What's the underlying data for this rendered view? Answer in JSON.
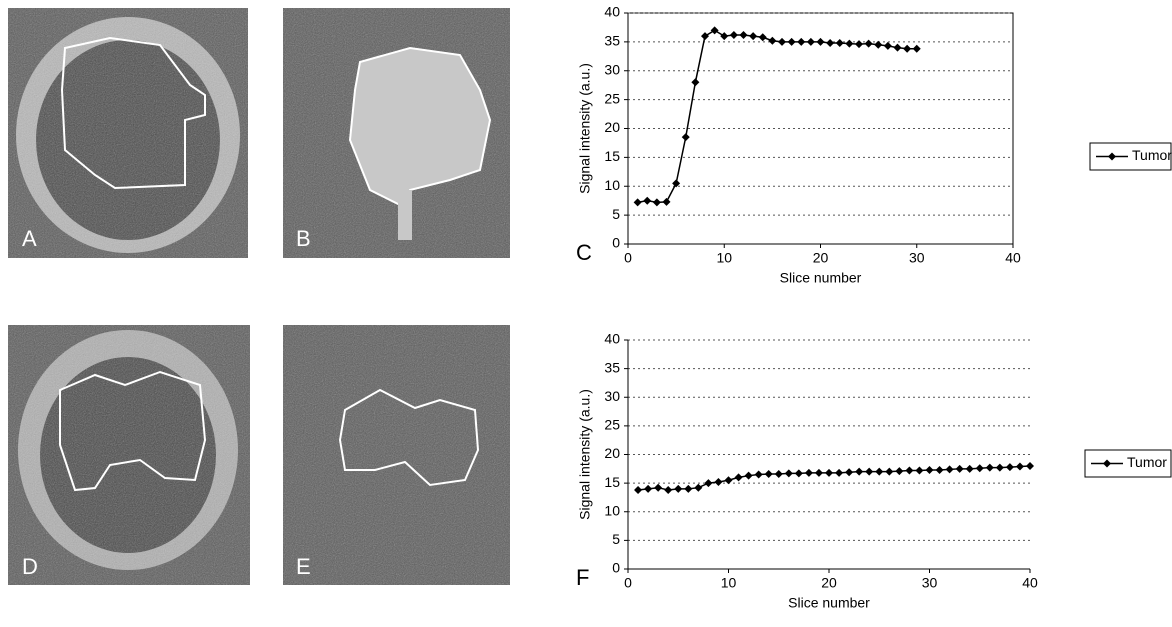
{
  "image_panels": [
    "A",
    "B",
    "D",
    "E"
  ],
  "chart_data": [
    {
      "type": "line",
      "panel_label": "C",
      "ylabel": "Signal intensity (a.u.)",
      "xlabel": "Slice number",
      "x": [
        1,
        2,
        3,
        4,
        5,
        6,
        7,
        8,
        9,
        10,
        11,
        12,
        13,
        14,
        15,
        16,
        17,
        18,
        19,
        20,
        21,
        22,
        23,
        24,
        25,
        26,
        27,
        28,
        29,
        30
      ],
      "series": [
        {
          "name": "Tumor",
          "color": "#000000",
          "values": [
            7.2,
            7.5,
            7.2,
            7.3,
            10.5,
            18.5,
            28,
            36,
            37,
            36,
            36.2,
            36.2,
            36,
            35.8,
            35.2,
            35,
            35,
            35,
            35,
            35,
            34.8,
            34.8,
            34.7,
            34.6,
            34.7,
            34.5,
            34.3,
            34,
            33.8,
            33.8
          ]
        }
      ],
      "xlim": [
        0,
        40
      ],
      "xticks": [
        0,
        10,
        20,
        30,
        40
      ],
      "ylim": [
        0,
        40
      ],
      "yticks": [
        0,
        5,
        10,
        15,
        20,
        25,
        30,
        35,
        40
      ],
      "grid": true
    },
    {
      "type": "line",
      "panel_label": "F",
      "ylabel": "Signal intensity (a.u.)",
      "xlabel": "Slice number",
      "x": [
        1,
        2,
        3,
        4,
        5,
        6,
        7,
        8,
        9,
        10,
        11,
        12,
        13,
        14,
        15,
        16,
        17,
        18,
        19,
        20,
        21,
        22,
        23,
        24,
        25,
        26,
        27,
        28,
        29,
        30,
        31,
        32,
        33,
        34,
        35,
        36,
        37,
        38,
        39,
        40
      ],
      "series": [
        {
          "name": "Tumor",
          "color": "#000000",
          "values": [
            13.8,
            14,
            14.2,
            13.8,
            14,
            14,
            14.2,
            15,
            15.2,
            15.5,
            16,
            16.3,
            16.5,
            16.6,
            16.6,
            16.7,
            16.7,
            16.8,
            16.8,
            16.8,
            16.8,
            16.9,
            17,
            17,
            17,
            17,
            17.1,
            17.2,
            17.2,
            17.3,
            17.3,
            17.4,
            17.5,
            17.5,
            17.6,
            17.7,
            17.7,
            17.8,
            17.9,
            18
          ]
        }
      ],
      "xlim": [
        0,
        40
      ],
      "xticks": [
        0,
        10,
        20,
        30,
        40
      ],
      "ylim": [
        0,
        40
      ],
      "yticks": [
        0,
        5,
        10,
        15,
        20,
        25,
        30,
        35,
        40
      ],
      "grid": true
    }
  ]
}
